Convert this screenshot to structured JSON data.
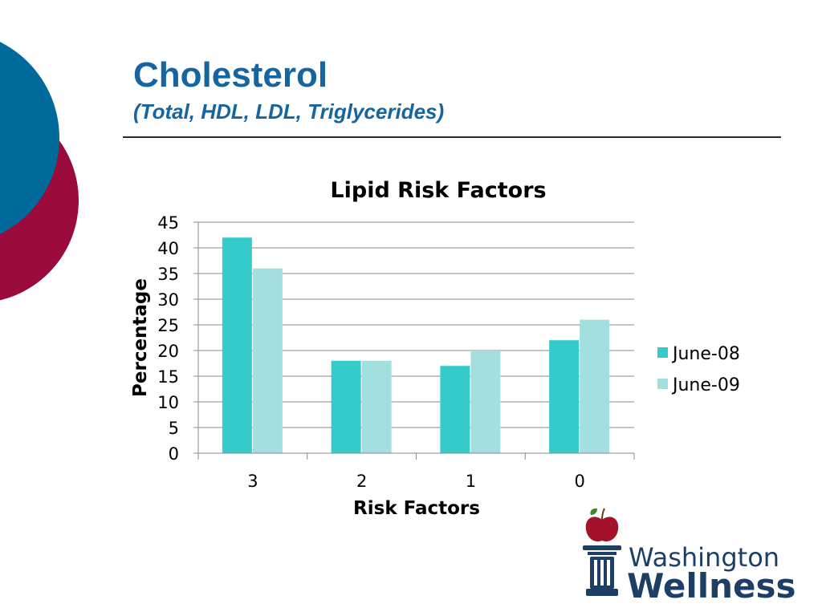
{
  "slide": {
    "title": "Cholesterol",
    "subtitle": "(Total, HDL, LDL, Triglycerides)"
  },
  "colors": {
    "title": "#1566a0",
    "circle_blue": "#006a9a",
    "circle_red": "#9a0a3a",
    "series_june08": "#36cbcb",
    "series_june09": "#a4dfdf",
    "logo_navy": "#1d3f66",
    "apple_red": "#a3122a",
    "leaf_green": "#3c8a2e"
  },
  "chart_data": {
    "type": "bar",
    "title": "Lipid Risk Factors",
    "xlabel": "Risk Factors",
    "ylabel": "Percentage",
    "categories": [
      "3",
      "2",
      "1",
      "0"
    ],
    "series": [
      {
        "name": "June-08",
        "values": [
          42,
          18,
          17,
          22
        ]
      },
      {
        "name": "June-09",
        "values": [
          36,
          18,
          20,
          26
        ]
      }
    ],
    "ylim": [
      0,
      45
    ],
    "yticks": [
      "0",
      "5",
      "10",
      "15",
      "20",
      "25",
      "30",
      "35",
      "40",
      "45"
    ],
    "grid": true,
    "legend": "right"
  },
  "logo": {
    "line1": "Washington",
    "line2": "Wellness"
  }
}
